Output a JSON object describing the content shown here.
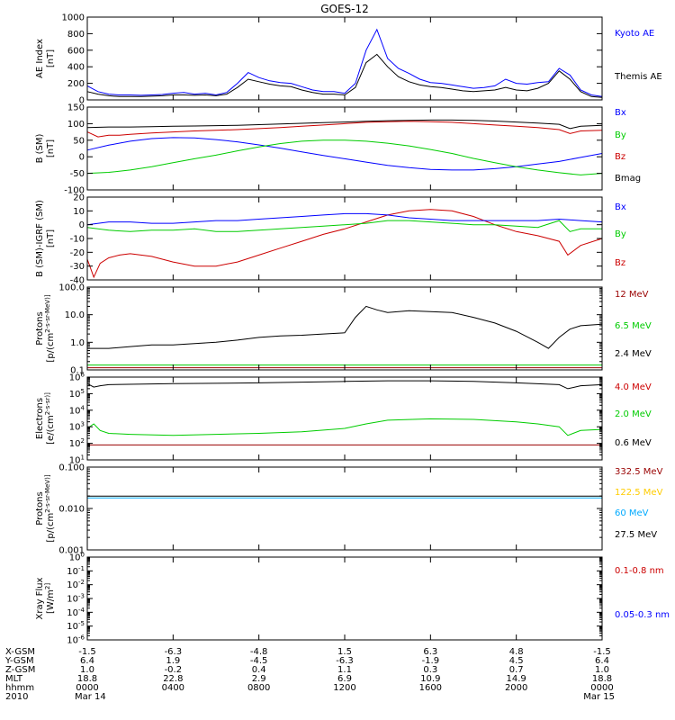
{
  "chart_data": [
    {
      "type": "line",
      "id": "ae",
      "title": "GOES-12",
      "ylabel_lines": [
        "AE Index",
        "[nT]"
      ],
      "ylim": [
        0,
        1000
      ],
      "yticks": [
        0,
        200,
        400,
        600,
        800,
        1000
      ],
      "ytick_labels": [
        "0",
        "200",
        "400",
        "600",
        "800",
        "1000"
      ],
      "legend": [
        {
          "name": "Kyoto AE",
          "color": "#0000ff"
        },
        {
          "name": "Themis AE",
          "color": "#000000"
        }
      ],
      "series": [
        {
          "name": "Kyoto AE",
          "color": "#0000ff",
          "x": [
            0,
            0.5,
            1,
            1.5,
            2,
            2.5,
            3,
            3.5,
            4,
            4.5,
            5,
            5.5,
            6,
            6.5,
            7,
            7.5,
            8,
            8.5,
            9,
            9.5,
            10,
            10.5,
            11,
            11.5,
            12,
            12.5,
            13,
            13.5,
            14,
            14.5,
            15,
            15.5,
            16,
            16.5,
            17,
            17.5,
            18,
            18.5,
            19,
            19.5,
            20,
            20.5,
            21,
            21.5,
            22,
            22.5,
            23,
            23.5,
            24
          ],
          "values": [
            170,
            100,
            70,
            60,
            60,
            55,
            60,
            65,
            80,
            90,
            70,
            80,
            60,
            90,
            200,
            330,
            270,
            230,
            210,
            200,
            160,
            120,
            100,
            100,
            80,
            200,
            600,
            850,
            500,
            380,
            320,
            250,
            210,
            200,
            180,
            160,
            140,
            150,
            170,
            250,
            200,
            190,
            210,
            220,
            380,
            300,
            120,
            60,
            40
          ]
        },
        {
          "name": "Themis AE",
          "color": "#000000",
          "x": [
            0,
            0.5,
            1,
            1.5,
            2,
            2.5,
            3,
            3.5,
            4,
            4.5,
            5,
            5.5,
            6,
            6.5,
            7,
            7.5,
            8,
            8.5,
            9,
            9.5,
            10,
            10.5,
            11,
            11.5,
            12,
            12.5,
            13,
            13.5,
            14,
            14.5,
            15,
            15.5,
            16,
            16.5,
            17,
            17.5,
            18,
            18.5,
            19,
            19.5,
            20,
            20.5,
            21,
            21.5,
            22,
            22.5,
            23,
            23.5,
            24
          ],
          "values": [
            100,
            70,
            50,
            40,
            40,
            40,
            45,
            50,
            60,
            60,
            55,
            60,
            50,
            70,
            150,
            250,
            220,
            190,
            170,
            160,
            120,
            90,
            70,
            70,
            60,
            150,
            450,
            550,
            400,
            280,
            220,
            180,
            160,
            150,
            130,
            110,
            100,
            110,
            120,
            150,
            120,
            110,
            140,
            200,
            350,
            250,
            100,
            40,
            30
          ]
        }
      ]
    },
    {
      "type": "line",
      "id": "bsm",
      "ylabel_lines": [
        "B (SM)",
        "[nT]"
      ],
      "ylim": [
        -100,
        150
      ],
      "yticks": [
        -100,
        -50,
        0,
        50,
        100,
        150
      ],
      "ytick_labels": [
        "-100",
        "-50",
        "0",
        "50",
        "100",
        "150"
      ],
      "legend": [
        {
          "name": "Bx",
          "color": "#0000ff"
        },
        {
          "name": "By",
          "color": "#00cc00"
        },
        {
          "name": "Bz",
          "color": "#cc0000"
        },
        {
          "name": "Bmag",
          "color": "#000000"
        }
      ],
      "series": [
        {
          "name": "Bmag",
          "color": "#000000",
          "x": [
            0,
            1,
            2,
            3,
            4,
            5,
            6,
            7,
            8,
            9,
            10,
            11,
            12,
            13,
            14,
            15,
            16,
            17,
            18,
            19,
            20,
            21,
            22,
            22.5,
            23,
            24
          ],
          "values": [
            88,
            90,
            90,
            91,
            92,
            93,
            94,
            95,
            97,
            99,
            101,
            103,
            105,
            107,
            109,
            110,
            111,
            111,
            110,
            108,
            105,
            102,
            98,
            85,
            92,
            95
          ]
        },
        {
          "name": "Bz",
          "color": "#cc0000",
          "x": [
            0,
            0.5,
            1,
            1.5,
            2,
            3,
            4,
            5,
            6,
            7,
            8,
            9,
            10,
            11,
            12,
            13,
            14,
            15,
            16,
            17,
            18,
            19,
            20,
            21,
            22,
            22.5,
            23,
            24
          ],
          "values": [
            75,
            60,
            65,
            65,
            68,
            72,
            75,
            78,
            80,
            82,
            85,
            88,
            92,
            96,
            100,
            104,
            106,
            107,
            106,
            104,
            100,
            96,
            92,
            88,
            82,
            70,
            78,
            80
          ]
        },
        {
          "name": "Bx",
          "color": "#0000ff",
          "x": [
            0,
            1,
            2,
            3,
            4,
            5,
            6,
            7,
            8,
            9,
            10,
            11,
            12,
            13,
            14,
            15,
            16,
            17,
            18,
            19,
            20,
            21,
            22,
            23,
            24
          ],
          "values": [
            20,
            35,
            47,
            55,
            58,
            57,
            52,
            45,
            36,
            26,
            15,
            4,
            -6,
            -16,
            -26,
            -33,
            -38,
            -40,
            -40,
            -36,
            -30,
            -22,
            -14,
            -2,
            10
          ]
        },
        {
          "name": "By",
          "color": "#00cc00",
          "x": [
            0,
            1,
            2,
            3,
            4,
            5,
            6,
            7,
            8,
            9,
            10,
            11,
            12,
            13,
            14,
            15,
            16,
            17,
            18,
            19,
            20,
            21,
            22,
            23,
            24
          ],
          "values": [
            -50,
            -47,
            -40,
            -30,
            -18,
            -6,
            5,
            18,
            30,
            40,
            47,
            50,
            50,
            47,
            41,
            33,
            22,
            10,
            -5,
            -18,
            -30,
            -40,
            -48,
            -55,
            -50
          ]
        }
      ]
    },
    {
      "type": "line",
      "id": "bigrf",
      "ylabel_lines": [
        "B (SM)-IGRF (SM)",
        "[nT]"
      ],
      "ylim": [
        -40,
        20
      ],
      "yticks": [
        -40,
        -30,
        -20,
        -10,
        0,
        10,
        20
      ],
      "ytick_labels": [
        "-40",
        "-30",
        "-20",
        "-10",
        "0",
        "10",
        "20"
      ],
      "legend": [
        {
          "name": "Bx",
          "color": "#0000ff"
        },
        {
          "name": "By",
          "color": "#00cc00"
        },
        {
          "name": "Bz",
          "color": "#cc0000"
        }
      ],
      "series": [
        {
          "name": "Bz",
          "color": "#cc0000",
          "x": [
            0,
            0.3,
            0.6,
            1,
            1.5,
            2,
            3,
            4,
            5,
            6,
            7,
            8,
            9,
            10,
            11,
            12,
            13,
            14,
            15,
            16,
            17,
            18,
            19,
            20,
            21,
            22,
            22.4,
            23,
            24
          ],
          "values": [
            -25,
            -38,
            -28,
            -24,
            -22,
            -21,
            -23,
            -27,
            -30,
            -30,
            -27,
            -22,
            -17,
            -12,
            -7,
            -3,
            2,
            7,
            10,
            11,
            10,
            6,
            0,
            -5,
            -8,
            -12,
            -22,
            -15,
            -10
          ]
        },
        {
          "name": "Bx",
          "color": "#0000ff",
          "x": [
            0,
            1,
            2,
            3,
            4,
            5,
            6,
            7,
            8,
            9,
            10,
            11,
            12,
            13,
            14,
            15,
            16,
            17,
            18,
            19,
            20,
            21,
            22,
            23,
            24
          ],
          "values": [
            0,
            2,
            2,
            1,
            1,
            2,
            3,
            3,
            4,
            5,
            6,
            7,
            8,
            8,
            7,
            5,
            4,
            3,
            3,
            3,
            3,
            3,
            4,
            3,
            2
          ]
        },
        {
          "name": "By",
          "color": "#00cc00",
          "x": [
            0,
            1,
            2,
            3,
            4,
            5,
            6,
            7,
            8,
            9,
            10,
            11,
            12,
            13,
            14,
            15,
            16,
            17,
            18,
            19,
            20,
            21,
            22,
            22.5,
            23,
            24
          ],
          "values": [
            -2,
            -4,
            -5,
            -4,
            -4,
            -3,
            -5,
            -5,
            -4,
            -3,
            -2,
            -1,
            0,
            1,
            3,
            3,
            2,
            1,
            0,
            0,
            -1,
            -2,
            3,
            -5,
            -3,
            -3
          ]
        }
      ]
    },
    {
      "type": "line",
      "id": "protons_low",
      "ylabel_lines": [
        "Protons",
        "[p/(cm^2-s-sr-MeV)]"
      ],
      "yscale": "log",
      "ylim": [
        0.1,
        100
      ],
      "yticks": [
        0.1,
        1,
        10,
        100
      ],
      "ytick_labels": [
        "0.1",
        "1.0",
        "10.0",
        "100.0"
      ],
      "legend": [
        {
          "name": "12 MeV",
          "color": "#990000"
        },
        {
          "name": "6.5 MeV",
          "color": "#00cc00"
        },
        {
          "name": "2.4 MeV",
          "color": "#000000"
        }
      ],
      "series": [
        {
          "name": "2.4 MeV",
          "color": "#000000",
          "x": [
            0,
            1,
            2,
            3,
            4,
            5,
            6,
            7,
            8,
            9,
            10,
            11,
            12,
            12.5,
            13,
            13.5,
            14,
            15,
            16,
            17,
            18,
            19,
            20,
            21,
            21.5,
            22,
            22.5,
            23,
            24
          ],
          "values": [
            0.6,
            0.6,
            0.7,
            0.8,
            0.8,
            0.9,
            1.0,
            1.2,
            1.5,
            1.7,
            1.8,
            2.0,
            2.2,
            8,
            20,
            15,
            12,
            14,
            13,
            12,
            8,
            5,
            2.5,
            1.0,
            0.6,
            1.5,
            3,
            4,
            4.5
          ]
        },
        {
          "name": "6.5 MeV",
          "color": "#00cc00",
          "x": [
            0,
            24
          ],
          "values": [
            0.15,
            0.15
          ]
        },
        {
          "name": "12 MeV",
          "color": "#990000",
          "x": [
            0,
            24
          ],
          "values": [
            0.12,
            0.12
          ]
        }
      ]
    },
    {
      "type": "line",
      "id": "electrons",
      "ylabel_lines": [
        "Electrons",
        "[e/(cm^2-s-sr)]"
      ],
      "yscale": "log",
      "ylim": [
        10,
        1000000
      ],
      "yticks": [
        10,
        100,
        1000,
        10000,
        100000,
        1000000
      ],
      "ytick_labels": [
        "10^1",
        "10^2",
        "10^3",
        "10^4",
        "10^5",
        "10^6"
      ],
      "legend": [
        {
          "name": "4.0 MeV",
          "color": "#cc0000"
        },
        {
          "name": "2.0 MeV",
          "color": "#00cc00"
        },
        {
          "name": "0.6 MeV",
          "color": "#000000"
        }
      ],
      "series": [
        {
          "name": "0.6 MeV",
          "color": "#000000",
          "x": [
            0,
            0.3,
            0.6,
            1,
            4,
            8,
            12,
            14,
            16,
            18,
            20,
            22,
            22.4,
            23,
            24
          ],
          "values": [
            400000,
            250000,
            300000,
            350000,
            400000,
            450000,
            550000,
            600000,
            600000,
            550000,
            450000,
            350000,
            200000,
            300000,
            350000
          ]
        },
        {
          "name": "2.0 MeV",
          "color": "#00cc00",
          "x": [
            0,
            0.3,
            0.6,
            1,
            2,
            4,
            6,
            8,
            10,
            12,
            13,
            14,
            16,
            18,
            20,
            21,
            22,
            22.4,
            23,
            24
          ],
          "values": [
            800,
            1500,
            600,
            400,
            350,
            300,
            350,
            400,
            500,
            800,
            1500,
            2500,
            3000,
            2800,
            2000,
            1500,
            1000,
            300,
            600,
            700
          ]
        },
        {
          "name": "4.0 MeV",
          "color": "#990000",
          "x": [
            0,
            24
          ],
          "values": [
            80,
            80
          ]
        }
      ]
    },
    {
      "type": "line",
      "id": "protons_high",
      "ylabel_lines": [
        "Protons",
        "[p/(cm^2-s-sr-MeV)]"
      ],
      "yscale": "log",
      "ylim": [
        0.001,
        0.1
      ],
      "yticks": [
        0.001,
        0.01,
        0.1
      ],
      "ytick_labels": [
        "0.001",
        "0.010",
        "0.100"
      ],
      "legend": [
        {
          "name": "332.5 MeV",
          "color": "#990000"
        },
        {
          "name": "122.5 MeV",
          "color": "#ffcc00"
        },
        {
          "name": "60 MeV",
          "color": "#00aaff"
        },
        {
          "name": "27.5 MeV",
          "color": "#000000"
        }
      ],
      "series": [
        {
          "name": "27.5 MeV",
          "color": "#000000",
          "x": [
            0,
            24
          ],
          "values": [
            0.02,
            0.02
          ]
        },
        {
          "name": "60 MeV",
          "color": "#00aaff",
          "x": [
            0,
            24
          ],
          "values": [
            0.018,
            0.018
          ]
        }
      ]
    },
    {
      "type": "line",
      "id": "xray",
      "ylabel_lines": [
        "Xray Flux",
        "[W/m^2]"
      ],
      "yscale": "log",
      "ylim": [
        1e-06,
        1
      ],
      "yticks": [
        1e-06,
        1e-05,
        0.0001,
        0.001,
        0.01,
        0.1,
        1
      ],
      "ytick_labels": [
        "10^-6",
        "10^-5",
        "10^-4",
        "10^-3",
        "10^-2",
        "10^-1",
        "10^0"
      ],
      "legend": [
        {
          "name": "0.1-0.8 nm",
          "color": "#cc0000"
        },
        {
          "name": "0.05-0.3 nm",
          "color": "#0000ff"
        }
      ],
      "series": []
    }
  ],
  "x_axis": {
    "range": [
      0,
      24
    ],
    "tick_hours": [
      0,
      4,
      8,
      12,
      16,
      20,
      24
    ],
    "row_labels": [
      "X-GSM",
      "Y-GSM",
      "Z-GSM",
      "MLT",
      "hhmm",
      "2010"
    ],
    "rows": [
      [
        "-1.5",
        "-6.3",
        "-4.8",
        "1.5",
        "6.3",
        "4.8",
        "-1.5"
      ],
      [
        "6.4",
        "1.9",
        "-4.5",
        "-6.3",
        "-1.9",
        "4.5",
        "6.4"
      ],
      [
        "1.0",
        "-0.2",
        "0.4",
        "1.1",
        "0.3",
        "0.7",
        "1.0"
      ],
      [
        "18.8",
        "22.8",
        "2.9",
        "6.9",
        "10.9",
        "14.9",
        "18.8"
      ],
      [
        "0000",
        "0400",
        "0800",
        "1200",
        "1600",
        "2000",
        "0000"
      ],
      [
        "Mar 14",
        "",
        "",
        "",
        "",
        "",
        "Mar 15"
      ]
    ]
  }
}
